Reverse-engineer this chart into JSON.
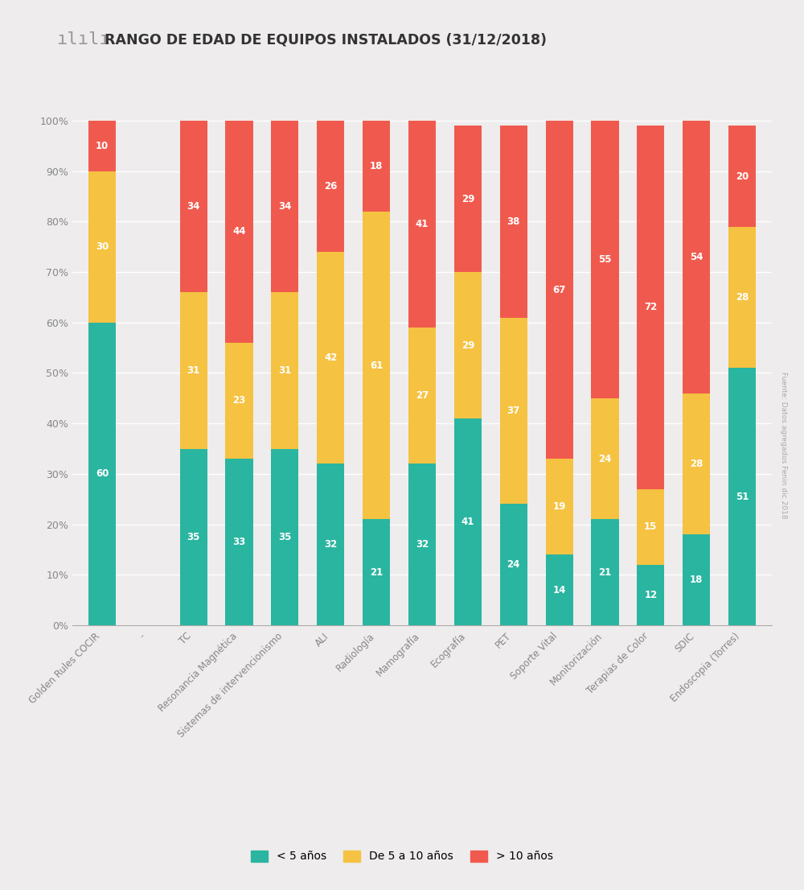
{
  "title": "RANGO DE EDAD DE EQUIPOS INSTALADOS (31/12/2018)",
  "categories": [
    "Golden Rules COCIR",
    " -",
    "TC",
    "Resonancia Magnética",
    "Sistemas de intervencionismo",
    "ALI",
    "Radiología",
    "Mamografía",
    "Ecografía",
    "PET",
    "Soporte Vital",
    "Monitorización",
    "Terapias de Color",
    "SDIC",
    "Endoscopia (Torres)"
  ],
  "less5": [
    60,
    0,
    35,
    33,
    35,
    32,
    21,
    32,
    41,
    24,
    14,
    21,
    12,
    18,
    51
  ],
  "mid": [
    30,
    0,
    31,
    23,
    31,
    42,
    61,
    27,
    29,
    37,
    19,
    24,
    15,
    28,
    28
  ],
  "more10": [
    10,
    0,
    34,
    44,
    34,
    26,
    18,
    41,
    29,
    38,
    67,
    55,
    72,
    54,
    20
  ],
  "color_less5": "#2ab5a0",
  "color_mid": "#f5c242",
  "color_more10": "#f05a4e",
  "background_color": "#eeecec",
  "legend_labels": [
    "< 5 años",
    "De 5 a 10 años",
    "> 10 años"
  ],
  "source_text": "Fuente: Datos agregados Fenin dic 2018"
}
